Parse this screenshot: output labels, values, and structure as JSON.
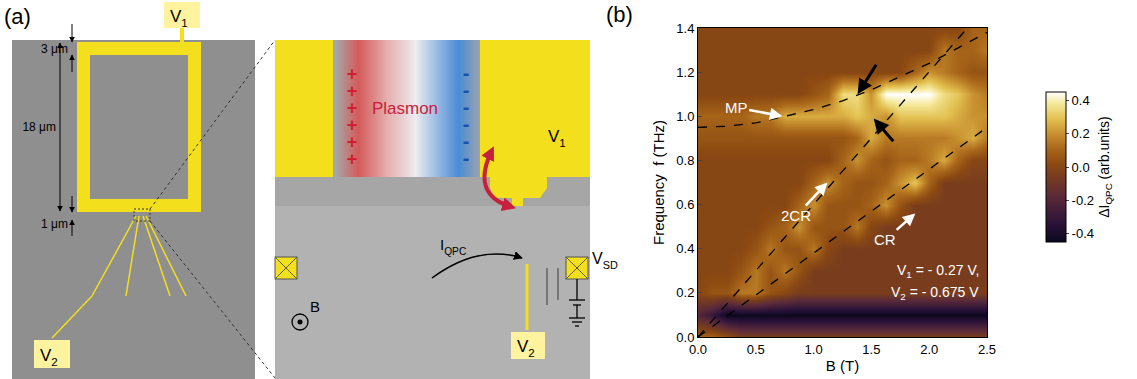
{
  "diagram": {
    "panel_label": "(a)",
    "overview": {
      "top_terminal": {
        "main": "V",
        "sub": "1"
      },
      "bottom_terminal": {
        "main": "V",
        "sub": "2"
      },
      "dimension_labels": [
        "3 μm",
        "18 μm",
        "1 μm"
      ]
    },
    "zoom": {
      "plasmon_label": "Plasmon",
      "positive_charge": "+",
      "negative_charge": "-",
      "gate_terminal": {
        "main": "V",
        "sub": "1"
      },
      "current_label": {
        "main": "I",
        "sub": "QPC"
      },
      "field_label": "B",
      "gate2_terminal": {
        "main": "V",
        "sub": "2"
      },
      "bias_label": {
        "main": "V",
        "sub": "SD"
      }
    }
  },
  "chart_data": {
    "type": "heatmap",
    "panel_label": "(b)",
    "x_label": "B (T)",
    "y_label": "Frequency  f (THz)",
    "x": [
      0,
      0.125,
      0.25,
      0.375,
      0.5,
      0.625,
      0.75,
      0.875,
      1.0,
      1.125,
      1.25,
      1.375,
      1.5,
      1.625,
      1.75,
      1.875,
      2.0,
      2.125,
      2.25,
      2.375,
      2.5
    ],
    "y": [
      0,
      0.1,
      0.2,
      0.3,
      0.4,
      0.5,
      0.6,
      0.7,
      0.8,
      0.9,
      1.0,
      1.1,
      1.2,
      1.3,
      1.4
    ],
    "z": [
      [
        0.1,
        0.1,
        0.05,
        -0.05,
        -0.05,
        -0.05,
        -0.05,
        -0.05,
        -0.05,
        -0.05,
        -0.05,
        -0.05,
        -0.05,
        -0.05,
        -0.05,
        -0.05,
        -0.05,
        -0.05,
        -0.05,
        -0.05,
        -0.05
      ],
      [
        -0.2,
        -0.3,
        -0.45,
        -0.45,
        -0.45,
        -0.45,
        -0.45,
        -0.45,
        -0.45,
        -0.45,
        -0.45,
        -0.45,
        -0.45,
        -0.45,
        -0.45,
        -0.45,
        -0.45,
        -0.45,
        -0.45,
        -0.45,
        -0.45
      ],
      [
        0.0,
        0.05,
        0.05,
        0.15,
        0.15,
        0.05,
        0.0,
        -0.05,
        -0.05,
        -0.05,
        -0.05,
        -0.05,
        -0.05,
        -0.05,
        -0.05,
        -0.05,
        -0.05,
        -0.05,
        -0.05,
        -0.05,
        -0.05
      ],
      [
        0.0,
        0.0,
        0.0,
        0.05,
        0.15,
        0.05,
        0.15,
        0.05,
        -0.05,
        -0.05,
        -0.05,
        -0.05,
        -0.05,
        -0.05,
        -0.05,
        -0.05,
        -0.05,
        -0.05,
        -0.05,
        -0.05,
        -0.05
      ],
      [
        0.0,
        0.0,
        0.0,
        0.0,
        0.05,
        0.15,
        0.05,
        0.05,
        0.15,
        0.0,
        -0.05,
        -0.05,
        -0.05,
        -0.05,
        -0.05,
        -0.05,
        -0.05,
        -0.05,
        -0.05,
        -0.05,
        -0.05
      ],
      [
        0.0,
        0.0,
        0.0,
        0.0,
        0.0,
        0.05,
        0.1,
        0.2,
        0.05,
        0.05,
        0.05,
        0.15,
        0.0,
        -0.05,
        -0.05,
        -0.05,
        -0.05,
        -0.05,
        -0.05,
        -0.05,
        -0.05
      ],
      [
        0.0,
        0.0,
        0.0,
        0.0,
        0.0,
        0.0,
        0.0,
        0.1,
        0.2,
        0.05,
        0.05,
        0.05,
        0.1,
        0.2,
        0.05,
        -0.05,
        -0.05,
        -0.05,
        -0.05,
        -0.05,
        -0.05
      ],
      [
        0.0,
        0.0,
        0.0,
        0.0,
        0.0,
        0.0,
        0.0,
        0.0,
        0.1,
        0.2,
        0.1,
        0.05,
        0.05,
        0.1,
        0.2,
        0.3,
        0.1,
        -0.05,
        -0.05,
        -0.05,
        -0.05
      ],
      [
        0.0,
        0.0,
        0.0,
        0.0,
        0.0,
        0.0,
        0.0,
        0.0,
        0.0,
        0.0,
        0.1,
        0.2,
        0.1,
        0.05,
        0.1,
        0.1,
        0.15,
        0.25,
        0.1,
        0.0,
        0.0
      ],
      [
        0.05,
        0.05,
        0.05,
        0.05,
        0.05,
        0.05,
        0.05,
        0.05,
        0.05,
        0.05,
        0.05,
        0.1,
        0.25,
        0.15,
        0.15,
        0.15,
        0.15,
        0.15,
        0.2,
        0.25,
        0.15
      ],
      [
        0.1,
        0.1,
        0.1,
        0.1,
        0.15,
        0.15,
        0.25,
        0.25,
        0.25,
        0.25,
        0.25,
        0.3,
        0.25,
        0.2,
        0.3,
        0.3,
        0.3,
        0.3,
        0.25,
        0.2,
        0.2
      ],
      [
        0.0,
        0.0,
        0.0,
        0.0,
        0.0,
        0.0,
        0.0,
        0.0,
        0.05,
        0.1,
        0.35,
        0.35,
        0.2,
        0.45,
        0.45,
        0.45,
        0.45,
        0.35,
        0.3,
        0.2,
        0.15
      ],
      [
        0.0,
        0.0,
        0.0,
        0.0,
        0.0,
        0.0,
        0.0,
        0.0,
        0.0,
        0.0,
        0.0,
        0.0,
        0.0,
        0.0,
        0.0,
        0.1,
        0.2,
        0.15,
        0.1,
        0.05,
        0.05
      ],
      [
        0.0,
        0.0,
        0.0,
        0.0,
        0.0,
        0.0,
        0.0,
        0.0,
        0.0,
        0.0,
        0.0,
        0.0,
        0.0,
        0.0,
        0.0,
        0.0,
        0.0,
        0.15,
        0.1,
        0.1,
        0.15
      ],
      [
        0.0,
        0.0,
        0.0,
        0.0,
        0.0,
        0.0,
        0.0,
        0.0,
        0.0,
        0.0,
        0.0,
        0.0,
        0.0,
        0.0,
        0.0,
        0.0,
        0.0,
        0.0,
        0.0,
        0.1,
        0.1
      ]
    ],
    "zlim": [
      -0.45,
      0.45
    ],
    "zticks": [
      {
        "value": -0.4,
        "label": "-0.4"
      },
      {
        "value": -0.2,
        "label": "-0.2"
      },
      {
        "value": 0,
        "label": "0.0"
      },
      0.2,
      0.4
    ],
    "colorbar_label": {
      "main": "ΔI",
      "sub": "QPC",
      "rest": " (arb.units)"
    },
    "xlim": [
      0,
      2.5
    ],
    "xticks": [
      {
        "value": 0,
        "label": "0.0"
      },
      0.5,
      {
        "value": 1,
        "label": "1.0"
      },
      1.5,
      {
        "value": 2,
        "label": "2.0"
      },
      2.5
    ],
    "ylim": [
      0,
      1.4
    ],
    "yticks": [
      {
        "value": 0,
        "label": "0.0"
      },
      0.2,
      0.4,
      0.6,
      0.8,
      {
        "value": 1,
        "label": "1.0"
      },
      1.2,
      1.4
    ],
    "grid": false,
    "series": [
      {
        "type": "line",
        "line_style": "dashed",
        "color": "#000000",
        "x": [
          0,
          0.25,
          0.5,
          0.75,
          1.0,
          1.25,
          1.5,
          1.75,
          2.0,
          2.25,
          2.5
        ],
        "values": [
          0.95,
          0.955,
          0.97,
          1.0,
          1.03,
          1.07,
          1.12,
          1.18,
          1.24,
          1.31,
          1.38
        ]
      },
      {
        "type": "line",
        "line_style": "dashed",
        "color": "#000000",
        "x": [
          0,
          2.33
        ],
        "values": [
          0,
          1.4
        ]
      },
      {
        "type": "line",
        "line_style": "dashed",
        "color": "#000000",
        "x": [
          0,
          2.5
        ],
        "values": [
          0,
          0.95
        ]
      }
    ],
    "annotations": [
      {
        "text": "MP",
        "x": 0.73,
        "y": 1.0,
        "text_x": 0.33,
        "text_y": 1.04,
        "color": "#ffffff"
      },
      {
        "text": "2CR",
        "x": 1.12,
        "y": 0.7,
        "text_x": 0.85,
        "text_y": 0.55,
        "color": "#ffffff"
      },
      {
        "text": "CR",
        "x": 1.88,
        "y": 0.56,
        "text_x": 1.62,
        "text_y": 0.44,
        "color": "#ffffff"
      }
    ],
    "arrows": [
      {
        "x": 1.38,
        "y": 1.1,
        "from_x": 1.55,
        "from_y": 1.24,
        "color": "#000000"
      },
      {
        "x": 1.52,
        "y": 0.99,
        "from_x": 1.7,
        "from_y": 0.88,
        "color": "#000000"
      }
    ],
    "texts": [
      {
        "main": "V",
        "sub": "1",
        "rest": " = - 0.27 V,",
        "x": 2.45,
        "y": 0.3,
        "color": "#ffffff"
      },
      {
        "main": "V",
        "sub": "2",
        "rest": " = - 0.675 V",
        "x": 2.45,
        "y": 0.2,
        "color": "#ffffff"
      }
    ]
  }
}
